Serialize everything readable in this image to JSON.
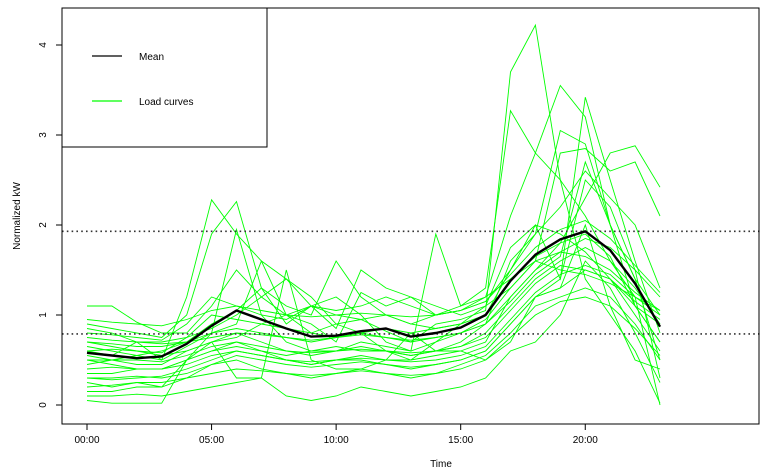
{
  "chart_data": {
    "type": "line",
    "title": "",
    "xlabel": "Time",
    "ylabel": "Normalized kW",
    "x": [
      0,
      1,
      2,
      3,
      4,
      5,
      6,
      7,
      8,
      9,
      10,
      11,
      12,
      13,
      14,
      15,
      16,
      17,
      18,
      19,
      20,
      21,
      22,
      23
    ],
    "xlim": [
      0,
      23
    ],
    "ylim": [
      0,
      4.3
    ],
    "x_ticks": [
      0,
      5,
      10,
      15,
      20
    ],
    "x_tick_labels": [
      "00:00",
      "05:00",
      "10:00",
      "15:00",
      "20:00"
    ],
    "y_ticks": [
      0,
      1,
      2,
      3,
      4
    ],
    "y_tick_labels": [
      "0",
      "1",
      "2",
      "3",
      "4"
    ],
    "grid": false,
    "legend": {
      "placement": "top-left",
      "entries": [
        {
          "label": "Mean",
          "color": "#000000"
        },
        {
          "label": "Load curves",
          "color": "#00ff00"
        }
      ]
    },
    "reference_lines": [
      {
        "y": 1.93,
        "style": "dotted",
        "color": "#333333"
      },
      {
        "y": 0.79,
        "style": "dotted",
        "color": "#333333"
      }
    ],
    "mean": {
      "color": "#000000",
      "values": [
        0.58,
        0.55,
        0.52,
        0.54,
        0.68,
        0.88,
        1.05,
        0.95,
        0.85,
        0.76,
        0.77,
        0.82,
        0.85,
        0.76,
        0.8,
        0.86,
        1.0,
        1.38,
        1.67,
        1.84,
        1.93,
        1.72,
        1.35,
        0.87
      ]
    },
    "series_color": "#00ff00",
    "series": [
      {
        "values": [
          0.58,
          0.55,
          0.52,
          0.54,
          0.68,
          0.88,
          1.05,
          0.95,
          0.85,
          0.76,
          0.77,
          0.82,
          0.85,
          0.76,
          0.8,
          0.86,
          1.0,
          1.38,
          1.67,
          1.84,
          1.93,
          1.72,
          1.35,
          0.87
        ]
      },
      {
        "values": [
          0.6,
          0.55,
          0.7,
          0.5,
          1.2,
          2.28,
          1.9,
          1.6,
          1.0,
          0.8,
          0.9,
          0.95,
          0.82,
          0.7,
          0.9,
          0.95,
          1.05,
          3.7,
          4.22,
          2.5,
          2.1,
          1.6,
          1.2,
          1.05
        ]
      },
      {
        "values": [
          0.9,
          0.85,
          0.8,
          0.75,
          1.0,
          1.9,
          2.26,
          1.3,
          0.9,
          1.1,
          1.2,
          1.0,
          0.7,
          0.6,
          1.9,
          1.1,
          1.3,
          3.27,
          2.8,
          2.5,
          1.4,
          1.0,
          0.6,
          0.02
        ]
      },
      {
        "values": [
          1.1,
          1.1,
          0.92,
          0.8,
          0.8,
          1.1,
          1.5,
          1.2,
          1.0,
          0.9,
          0.7,
          1.25,
          1.1,
          1.2,
          1.0,
          1.1,
          1.2,
          2.1,
          2.8,
          3.55,
          3.2,
          2.0,
          1.1,
          0.7
        ]
      },
      {
        "values": [
          0.25,
          0.2,
          0.25,
          0.2,
          0.5,
          0.8,
          0.9,
          1.6,
          1.4,
          1.2,
          0.9,
          0.8,
          0.6,
          0.5,
          0.7,
          0.9,
          1.0,
          1.5,
          2.0,
          1.4,
          3.42,
          2.5,
          1.6,
          0.8
        ]
      },
      {
        "values": [
          0.7,
          0.65,
          0.6,
          0.55,
          0.6,
          0.7,
          0.8,
          0.7,
          0.6,
          0.55,
          0.6,
          0.65,
          0.6,
          0.55,
          0.6,
          0.7,
          0.9,
          1.6,
          1.9,
          3.05,
          2.9,
          2.0,
          1.4,
          1.0
        ]
      },
      {
        "values": [
          0.45,
          0.5,
          0.55,
          0.5,
          0.65,
          0.8,
          1.95,
          1.0,
          0.7,
          0.6,
          0.6,
          0.7,
          0.65,
          0.6,
          0.7,
          0.8,
          0.95,
          1.3,
          1.6,
          2.8,
          2.85,
          2.6,
          2.7,
          2.1
        ]
      },
      {
        "values": [
          0.35,
          0.35,
          0.4,
          0.4,
          0.5,
          0.6,
          0.7,
          0.6,
          0.5,
          0.45,
          0.5,
          0.55,
          0.5,
          0.5,
          0.55,
          0.6,
          0.7,
          1.2,
          1.5,
          1.8,
          2.3,
          2.8,
          2.88,
          2.42
        ]
      },
      {
        "values": [
          0.8,
          0.78,
          0.75,
          0.72,
          0.9,
          1.2,
          1.1,
          1.0,
          0.95,
          1.1,
          1.0,
          0.95,
          1.0,
          0.9,
          1.0,
          1.05,
          1.15,
          1.5,
          1.9,
          2.2,
          2.6,
          2.3,
          2.0,
          1.3
        ]
      },
      {
        "values": [
          0.6,
          0.62,
          0.6,
          0.58,
          0.75,
          1.0,
          0.95,
          0.9,
          0.85,
          0.8,
          0.75,
          0.8,
          0.85,
          0.8,
          0.85,
          0.9,
          1.1,
          1.75,
          2.0,
          1.9,
          1.7,
          1.4,
          1.1,
          0.9
        ]
      },
      {
        "values": [
          0.3,
          0.28,
          0.3,
          0.32,
          0.4,
          0.5,
          0.6,
          0.55,
          0.5,
          0.45,
          0.5,
          0.5,
          0.45,
          0.4,
          0.45,
          0.5,
          0.6,
          0.9,
          1.2,
          1.3,
          1.5,
          1.4,
          1.0,
          0.6
        ]
      },
      {
        "values": [
          0.15,
          0.15,
          0.2,
          0.2,
          0.3,
          0.45,
          0.5,
          0.4,
          0.35,
          0.3,
          0.35,
          0.4,
          0.35,
          0.3,
          0.35,
          0.45,
          0.55,
          0.8,
          1.1,
          1.2,
          1.3,
          1.2,
          0.9,
          0.5
        ]
      },
      {
        "values": [
          0.1,
          0.1,
          0.12,
          0.1,
          0.15,
          0.2,
          0.25,
          0.3,
          0.1,
          0.05,
          0.1,
          0.2,
          0.15,
          0.1,
          0.15,
          0.2,
          0.3,
          0.6,
          0.7,
          1.0,
          1.6,
          1.3,
          0.8,
          0.25
        ]
      },
      {
        "values": [
          0.05,
          0.02,
          0.02,
          0.02,
          0.5,
          0.7,
          0.3,
          0.3,
          1.5,
          0.5,
          0.4,
          0.4,
          0.5,
          0.8,
          0.6,
          0.6,
          0.5,
          0.7,
          1.2,
          1.3,
          2.0,
          1.1,
          0.5,
          0.4
        ]
      },
      {
        "values": [
          0.85,
          0.8,
          0.7,
          0.7,
          0.75,
          0.85,
          1.0,
          1.2,
          1.4,
          1.1,
          0.85,
          1.5,
          1.3,
          1.2,
          1.1,
          1.0,
          1.1,
          1.3,
          1.6,
          1.7,
          1.85,
          1.75,
          1.5,
          1.2
        ]
      },
      {
        "values": [
          0.5,
          0.5,
          0.45,
          0.45,
          0.6,
          0.7,
          0.75,
          0.9,
          1.0,
          1.1,
          1.05,
          1.1,
          1.2,
          1.1,
          1.0,
          1.05,
          1.2,
          1.4,
          1.6,
          1.5,
          1.45,
          1.35,
          1.2,
          1.0
        ]
      },
      {
        "values": [
          0.65,
          0.6,
          0.55,
          0.6,
          0.7,
          0.9,
          1.05,
          1.3,
          1.1,
          1.0,
          1.6,
          1.2,
          1.0,
          0.9,
          0.85,
          0.9,
          1.0,
          1.4,
          1.65,
          1.8,
          1.9,
          1.65,
          1.1,
          0.7
        ]
      },
      {
        "values": [
          0.4,
          0.42,
          0.4,
          0.4,
          0.5,
          0.6,
          0.65,
          0.6,
          0.55,
          0.6,
          0.65,
          0.6,
          0.6,
          0.55,
          0.6,
          0.65,
          0.8,
          1.1,
          1.4,
          1.6,
          1.75,
          1.6,
          1.3,
          0.9
        ]
      },
      {
        "values": [
          0.75,
          0.72,
          0.7,
          0.68,
          0.7,
          0.8,
          0.85,
          0.8,
          0.75,
          0.7,
          0.75,
          0.8,
          0.75,
          0.7,
          0.75,
          0.8,
          0.9,
          1.2,
          1.5,
          1.7,
          1.65,
          1.5,
          1.25,
          1.05
        ]
      },
      {
        "values": [
          0.55,
          0.5,
          0.5,
          0.48,
          0.55,
          0.65,
          0.7,
          0.65,
          0.6,
          0.58,
          0.6,
          0.62,
          0.6,
          0.58,
          0.6,
          0.65,
          0.75,
          1.05,
          1.35,
          1.55,
          1.5,
          1.4,
          1.15,
          0.95
        ]
      },
      {
        "values": [
          0.2,
          0.22,
          0.25,
          0.25,
          0.3,
          0.35,
          0.4,
          0.38,
          0.35,
          0.33,
          0.35,
          0.38,
          0.35,
          0.33,
          0.35,
          0.4,
          0.5,
          0.75,
          1.0,
          1.15,
          1.2,
          1.1,
          0.85,
          0.55
        ]
      },
      {
        "values": [
          0.95,
          0.92,
          0.9,
          0.88,
          0.95,
          1.05,
          1.1,
          1.05,
          1.0,
          0.98,
          1.0,
          1.02,
          1.0,
          0.98,
          1.0,
          1.05,
          1.15,
          1.45,
          1.75,
          1.95,
          2.05,
          1.85,
          1.55,
          1.25
        ]
      },
      {
        "values": [
          0.5,
          0.45,
          0.4,
          0.4,
          0.45,
          0.55,
          0.6,
          0.55,
          0.5,
          0.48,
          0.5,
          0.52,
          0.5,
          0.48,
          0.5,
          0.55,
          0.65,
          0.95,
          1.25,
          1.45,
          1.55,
          1.45,
          1.2,
          0.0
        ]
      },
      {
        "values": [
          0.7,
          0.68,
          0.65,
          0.65,
          0.7,
          0.75,
          0.8,
          0.78,
          0.75,
          0.72,
          0.75,
          0.78,
          0.75,
          0.72,
          0.75,
          0.8,
          0.9,
          1.15,
          1.45,
          1.65,
          2.7,
          2.0,
          1.4,
          0.5
        ]
      },
      {
        "values": [
          0.3,
          0.3,
          0.32,
          0.3,
          0.35,
          0.45,
          0.55,
          0.5,
          0.45,
          0.42,
          0.45,
          0.48,
          0.45,
          0.42,
          0.45,
          0.5,
          0.6,
          0.9,
          1.2,
          1.4,
          2.5,
          2.2,
          1.5,
          0.3
        ]
      }
    ]
  }
}
